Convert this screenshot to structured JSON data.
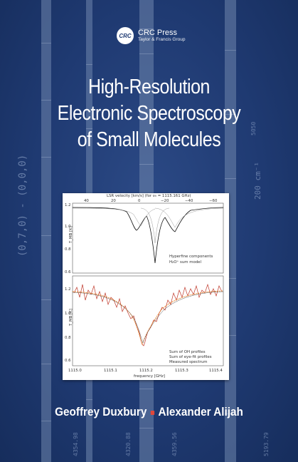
{
  "publisher": {
    "logo_text": "CRC",
    "name": "CRC Press",
    "group": "Taylor & Francis Group"
  },
  "title": {
    "line1": "High-Resolution",
    "line2": "Electronic Spectroscopy",
    "line3": "of Small Molecules"
  },
  "authors": {
    "first": "Geoffrey Duxbury",
    "second": "Alexander Alijah"
  },
  "decorations": {
    "band_left": "(0,7,0) - (0,0,0)",
    "wavenumber": "200 cm⁻¹",
    "numbers": [
      "4354.98",
      "4359.56",
      "5193.79",
      "4320.88",
      "5050"
    ]
  },
  "figure": {
    "top_axis_label": "LSR velocity [km/s]   (for ν₀ = 1115.161 GHz)",
    "top_ticks": [
      "40",
      "20",
      "0",
      "−20",
      "−40",
      "−60"
    ],
    "x_ticks": [
      "1115.0",
      "1115.1",
      "1115.2",
      "1115.3",
      "1115.4"
    ],
    "x_label": "frequency [GHz]",
    "upper_y_ticks": [
      "1.2",
      "1.0",
      "0.8",
      "0.6"
    ],
    "lower_y_ticks": [
      "1.2",
      "1.0",
      "0.8",
      "0.6"
    ],
    "y_label": "T_MB [K]",
    "upper_legend": [
      "Hyperfine components",
      "H₂O⁺ sum model"
    ],
    "lower_legend": [
      "Sum of OH profiles",
      "Sum of eye-fit profiles",
      "Measured spectrum"
    ]
  }
}
